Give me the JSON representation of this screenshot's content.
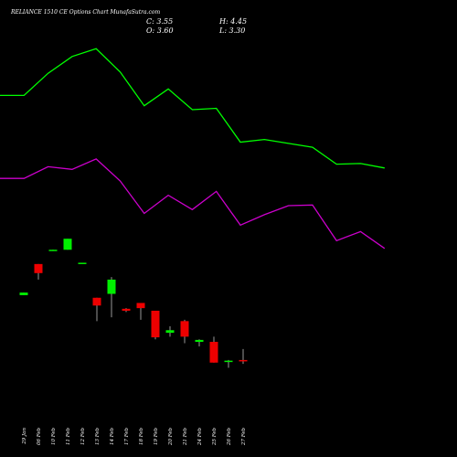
{
  "header": {
    "title": "RELIANCE 1510  CE Options  Chart MunafaSutra.com",
    "close": "C: 3.55",
    "open": "O: 3.60",
    "high": "H: 4.45",
    "low": "L: 3.30"
  },
  "colors": {
    "background": "#000000",
    "bull": "#00ee00",
    "bear": "#ee0000",
    "upper_line": "#00ff00",
    "lower_line": "#cc00cc",
    "wick": "#ffffff"
  },
  "chart_data": {
    "type": "candlestick",
    "dates": [
      "29 Jan",
      "06 Feb",
      "10 Feb",
      "11 Feb",
      "12 Feb",
      "13 Feb",
      "14 Feb",
      "17 Feb",
      "18 Feb",
      "19 Feb",
      "20 Feb",
      "21 Feb",
      "24 Feb",
      "25 Feb",
      "26 Feb",
      "27 Feb"
    ],
    "candles": [
      {
        "open": 8.6,
        "close": 8.8,
        "high": 8.8,
        "low": 8.6,
        "dir": "up"
      },
      {
        "open": 11.0,
        "close": 10.3,
        "high": 11.0,
        "low": 9.8,
        "dir": "down"
      },
      {
        "open": 12.05,
        "close": 12.1,
        "high": 12.1,
        "low": 12.05,
        "dir": "up"
      },
      {
        "open": 12.1,
        "close": 12.95,
        "high": 12.95,
        "low": 12.1,
        "dir": "up"
      },
      {
        "open": 11.05,
        "close": 11.1,
        "high": 11.1,
        "low": 11.05,
        "dir": "up"
      },
      {
        "open": 8.4,
        "close": 7.8,
        "high": 8.4,
        "low": 6.6,
        "dir": "down"
      },
      {
        "open": 8.7,
        "close": 9.8,
        "high": 10.0,
        "low": 6.9,
        "dir": "up"
      },
      {
        "open": 7.55,
        "close": 7.4,
        "high": 7.6,
        "low": 7.3,
        "dir": "down"
      },
      {
        "open": 8.0,
        "close": 7.6,
        "high": 8.0,
        "low": 6.7,
        "dir": "down"
      },
      {
        "open": 7.4,
        "close": 5.35,
        "high": 7.4,
        "low": 5.2,
        "dir": "down"
      },
      {
        "open": 5.7,
        "close": 5.9,
        "high": 6.2,
        "low": 5.4,
        "dir": "up"
      },
      {
        "open": 6.6,
        "close": 5.4,
        "high": 6.7,
        "low": 4.9,
        "dir": "down"
      },
      {
        "open": 5.0,
        "close": 5.15,
        "high": 5.2,
        "low": 4.65,
        "dir": "up"
      },
      {
        "open": 5.0,
        "close": 3.4,
        "high": 5.4,
        "low": 3.4,
        "dir": "down"
      },
      {
        "open": 3.45,
        "close": 3.55,
        "high": 3.6,
        "low": 3.0,
        "dir": "up"
      },
      {
        "open": 3.6,
        "close": 3.55,
        "high": 4.45,
        "low": 3.3,
        "dir": "down"
      }
    ],
    "upper_band": [
      24.0,
      24.0,
      25.7,
      27.0,
      27.6,
      25.8,
      23.2,
      24.5,
      22.9,
      23.0,
      20.4,
      20.6,
      20.3,
      20.0,
      18.7,
      18.75,
      18.4
    ],
    "lower_band": [
      17.6,
      17.6,
      18.5,
      18.3,
      19.1,
      17.4,
      14.9,
      16.3,
      15.2,
      16.6,
      14.0,
      14.8,
      15.5,
      15.55,
      12.8,
      13.5,
      12.2
    ],
    "ylim": [
      0,
      31
    ],
    "grid": false
  }
}
